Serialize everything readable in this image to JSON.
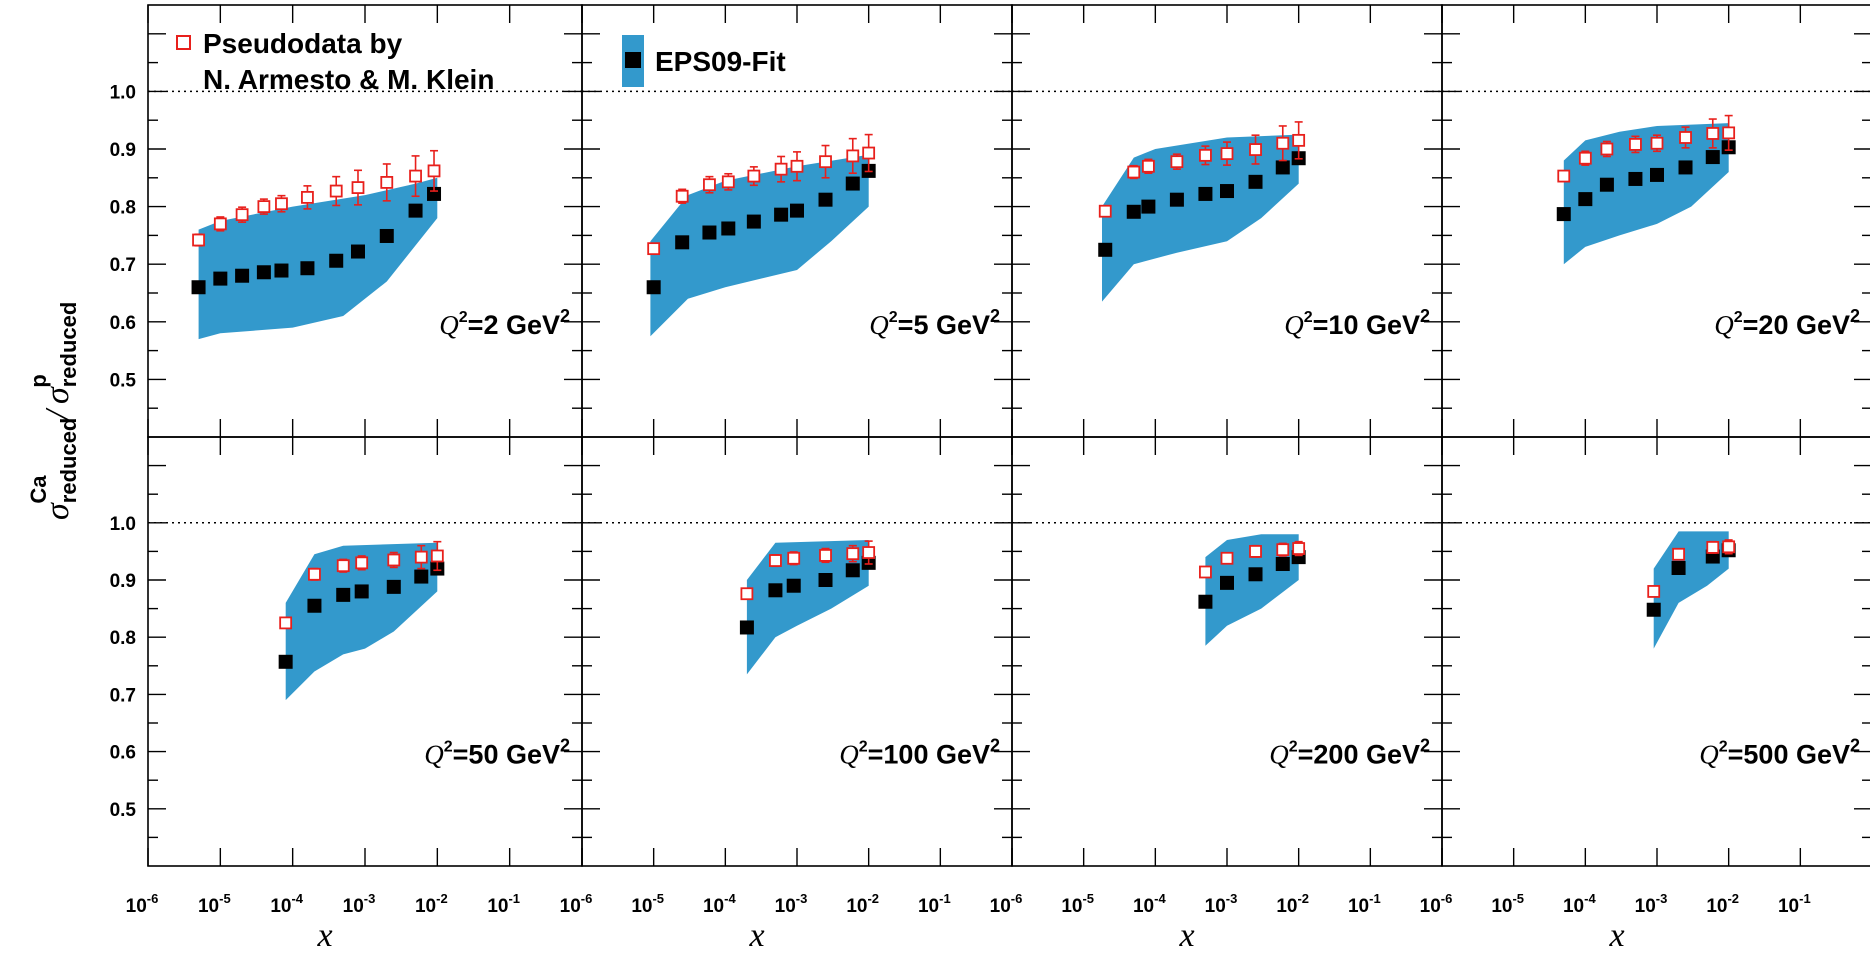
{
  "legend": {
    "pseudodata_line1": "Pseudodata by",
    "pseudodata_line2": "N. Armesto & M. Klein",
    "fit_label": "EPS09-Fit"
  },
  "y_axis": {
    "symbol": "σ",
    "num_sub": "reduced",
    "num_sup": "Ca",
    "divider": "/",
    "den_sub": "reduced",
    "den_sup": "p"
  },
  "x_axis_title": "x",
  "colors": {
    "band": "#3399cc",
    "pseudodata": "#e8201c",
    "fit": "#000000",
    "frame": "#000000"
  },
  "chart_data": {
    "type": "scatter",
    "x_scale": "log",
    "xlim": [
      1e-06,
      1
    ],
    "ylim": [
      0.4,
      1.15
    ],
    "x_ticks": [
      {
        "base": "10",
        "exp": "-6"
      },
      {
        "base": "10",
        "exp": "-5"
      },
      {
        "base": "10",
        "exp": "-4"
      },
      {
        "base": "10",
        "exp": "-3"
      },
      {
        "base": "10",
        "exp": "-2"
      },
      {
        "base": "10",
        "exp": "-1"
      }
    ],
    "y_ticks": [
      "0.5",
      "0.6",
      "0.7",
      "0.8",
      "0.9",
      "1.0"
    ],
    "reference_line": 1.0,
    "series_names": [
      "Pseudodata by N. Armesto & M. Klein",
      "EPS09-Fit"
    ],
    "panels": [
      {
        "q2_var": "Q",
        "q2_sup": "2",
        "q2_text": "=2 GeV",
        "q2_unit_sup": "2",
        "pseudodata": [
          {
            "x": 5e-06,
            "y": 0.742,
            "err": 0.01
          },
          {
            "x": 1e-05,
            "y": 0.77,
            "err": 0.012
          },
          {
            "x": 2e-05,
            "y": 0.786,
            "err": 0.013
          },
          {
            "x": 4e-05,
            "y": 0.8,
            "err": 0.013
          },
          {
            "x": 7e-05,
            "y": 0.805,
            "err": 0.014
          },
          {
            "x": 0.00016,
            "y": 0.816,
            "err": 0.02
          },
          {
            "x": 0.0004,
            "y": 0.827,
            "err": 0.025
          },
          {
            "x": 0.0008,
            "y": 0.833,
            "err": 0.03
          },
          {
            "x": 0.002,
            "y": 0.842,
            "err": 0.032
          },
          {
            "x": 0.005,
            "y": 0.853,
            "err": 0.035
          },
          {
            "x": 0.009,
            "y": 0.862,
            "err": 0.035
          }
        ],
        "fit": [
          {
            "x": 5e-06,
            "y": 0.66
          },
          {
            "x": 1e-05,
            "y": 0.675
          },
          {
            "x": 2e-05,
            "y": 0.68
          },
          {
            "x": 4e-05,
            "y": 0.686
          },
          {
            "x": 7e-05,
            "y": 0.689
          },
          {
            "x": 0.00016,
            "y": 0.693
          },
          {
            "x": 0.0004,
            "y": 0.706
          },
          {
            "x": 0.0008,
            "y": 0.722
          },
          {
            "x": 0.002,
            "y": 0.749
          },
          {
            "x": 0.005,
            "y": 0.793
          },
          {
            "x": 0.009,
            "y": 0.822
          }
        ],
        "band_upper": [
          [
            5e-06,
            0.76
          ],
          [
            1e-05,
            0.775
          ],
          [
            0.0001,
            0.8
          ],
          [
            0.001,
            0.82
          ],
          [
            0.005,
            0.84
          ],
          [
            0.01,
            0.85
          ]
        ],
        "band_lower": [
          [
            5e-06,
            0.57
          ],
          [
            1e-05,
            0.58
          ],
          [
            0.0001,
            0.59
          ],
          [
            0.0005,
            0.61
          ],
          [
            0.002,
            0.67
          ],
          [
            0.01,
            0.78
          ]
        ]
      },
      {
        "q2_var": "Q",
        "q2_sup": "2",
        "q2_text": "=5 GeV",
        "q2_unit_sup": "2",
        "pseudodata": [
          {
            "x": 1e-05,
            "y": 0.727,
            "err": 0.009
          },
          {
            "x": 2.5e-05,
            "y": 0.818,
            "err": 0.012
          },
          {
            "x": 6e-05,
            "y": 0.838,
            "err": 0.014
          },
          {
            "x": 0.00011,
            "y": 0.843,
            "err": 0.014
          },
          {
            "x": 0.00025,
            "y": 0.853,
            "err": 0.016
          },
          {
            "x": 0.0006,
            "y": 0.865,
            "err": 0.022
          },
          {
            "x": 0.001,
            "y": 0.87,
            "err": 0.025
          },
          {
            "x": 0.0025,
            "y": 0.878,
            "err": 0.028
          },
          {
            "x": 0.006,
            "y": 0.888,
            "err": 0.03
          },
          {
            "x": 0.01,
            "y": 0.893,
            "err": 0.032
          }
        ],
        "fit": [
          {
            "x": 1e-05,
            "y": 0.66
          },
          {
            "x": 2.5e-05,
            "y": 0.738
          },
          {
            "x": 6e-05,
            "y": 0.755
          },
          {
            "x": 0.00011,
            "y": 0.762
          },
          {
            "x": 0.00025,
            "y": 0.774
          },
          {
            "x": 0.0006,
            "y": 0.786
          },
          {
            "x": 0.001,
            "y": 0.793
          },
          {
            "x": 0.0025,
            "y": 0.812
          },
          {
            "x": 0.006,
            "y": 0.84
          },
          {
            "x": 0.01,
            "y": 0.862
          }
        ],
        "band_upper": [
          [
            9e-06,
            0.74
          ],
          [
            3e-05,
            0.82
          ],
          [
            0.0001,
            0.845
          ],
          [
            0.001,
            0.87
          ],
          [
            0.01,
            0.89
          ]
        ],
        "band_lower": [
          [
            9e-06,
            0.575
          ],
          [
            3e-05,
            0.64
          ],
          [
            0.0001,
            0.66
          ],
          [
            0.001,
            0.69
          ],
          [
            0.003,
            0.74
          ],
          [
            0.01,
            0.8
          ]
        ]
      },
      {
        "q2_var": "Q",
        "q2_sup": "2",
        "q2_text": "=10 GeV",
        "q2_unit_sup": "2",
        "pseudodata": [
          {
            "x": 2e-05,
            "y": 0.792,
            "err": 0.009
          },
          {
            "x": 5e-05,
            "y": 0.86,
            "err": 0.011
          },
          {
            "x": 8e-05,
            "y": 0.87,
            "err": 0.012
          },
          {
            "x": 0.0002,
            "y": 0.878,
            "err": 0.013
          },
          {
            "x": 0.0005,
            "y": 0.889,
            "err": 0.016
          },
          {
            "x": 0.001,
            "y": 0.892,
            "err": 0.02
          },
          {
            "x": 0.0025,
            "y": 0.899,
            "err": 0.025
          },
          {
            "x": 0.006,
            "y": 0.91,
            "err": 0.03
          },
          {
            "x": 0.01,
            "y": 0.915,
            "err": 0.032
          }
        ],
        "fit": [
          {
            "x": 2e-05,
            "y": 0.725
          },
          {
            "x": 5e-05,
            "y": 0.791
          },
          {
            "x": 8e-05,
            "y": 0.8
          },
          {
            "x": 0.0002,
            "y": 0.812
          },
          {
            "x": 0.0005,
            "y": 0.822
          },
          {
            "x": 0.001,
            "y": 0.827
          },
          {
            "x": 0.0025,
            "y": 0.843
          },
          {
            "x": 0.006,
            "y": 0.868
          },
          {
            "x": 0.01,
            "y": 0.884
          }
        ],
        "band_upper": [
          [
            1.8e-05,
            0.8
          ],
          [
            5e-05,
            0.885
          ],
          [
            0.0001,
            0.9
          ],
          [
            0.001,
            0.92
          ],
          [
            0.01,
            0.925
          ]
        ],
        "band_lower": [
          [
            1.8e-05,
            0.635
          ],
          [
            5e-05,
            0.7
          ],
          [
            0.0002,
            0.72
          ],
          [
            0.001,
            0.74
          ],
          [
            0.003,
            0.78
          ],
          [
            0.01,
            0.84
          ]
        ]
      },
      {
        "q2_var": "Q",
        "q2_sup": "2",
        "q2_text": "=20 GeV",
        "q2_unit_sup": "2",
        "pseudodata": [
          {
            "x": 5e-05,
            "y": 0.853,
            "err": 0.009
          },
          {
            "x": 0.0001,
            "y": 0.884,
            "err": 0.012
          },
          {
            "x": 0.0002,
            "y": 0.9,
            "err": 0.013
          },
          {
            "x": 0.0005,
            "y": 0.908,
            "err": 0.014
          },
          {
            "x": 0.001,
            "y": 0.91,
            "err": 0.014
          },
          {
            "x": 0.0025,
            "y": 0.92,
            "err": 0.018
          },
          {
            "x": 0.006,
            "y": 0.927,
            "err": 0.025
          },
          {
            "x": 0.01,
            "y": 0.928,
            "err": 0.03
          }
        ],
        "fit": [
          {
            "x": 5e-05,
            "y": 0.787
          },
          {
            "x": 0.0001,
            "y": 0.813
          },
          {
            "x": 0.0002,
            "y": 0.838
          },
          {
            "x": 0.0005,
            "y": 0.848
          },
          {
            "x": 0.001,
            "y": 0.855
          },
          {
            "x": 0.0025,
            "y": 0.868
          },
          {
            "x": 0.006,
            "y": 0.886
          },
          {
            "x": 0.01,
            "y": 0.903
          }
        ],
        "band_upper": [
          [
            5e-05,
            0.88
          ],
          [
            0.0001,
            0.915
          ],
          [
            0.0003,
            0.93
          ],
          [
            0.001,
            0.94
          ],
          [
            0.01,
            0.945
          ]
        ],
        "band_lower": [
          [
            5e-05,
            0.7
          ],
          [
            0.0001,
            0.73
          ],
          [
            0.0003,
            0.75
          ],
          [
            0.001,
            0.77
          ],
          [
            0.003,
            0.8
          ],
          [
            0.01,
            0.86
          ]
        ]
      },
      {
        "q2_var": "Q",
        "q2_sup": "2",
        "q2_text": "=50 GeV",
        "q2_unit_sup": "2",
        "pseudodata": [
          {
            "x": 8e-05,
            "y": 0.825,
            "err": 0.008
          },
          {
            "x": 0.0002,
            "y": 0.91,
            "err": 0.01
          },
          {
            "x": 0.0005,
            "y": 0.925,
            "err": 0.011
          },
          {
            "x": 0.0009,
            "y": 0.93,
            "err": 0.012
          },
          {
            "x": 0.0025,
            "y": 0.935,
            "err": 0.013
          },
          {
            "x": 0.006,
            "y": 0.94,
            "err": 0.02
          },
          {
            "x": 0.01,
            "y": 0.942,
            "err": 0.025
          }
        ],
        "fit": [
          {
            "x": 8e-05,
            "y": 0.757
          },
          {
            "x": 0.0002,
            "y": 0.855
          },
          {
            "x": 0.0005,
            "y": 0.874
          },
          {
            "x": 0.0009,
            "y": 0.88
          },
          {
            "x": 0.0025,
            "y": 0.888
          },
          {
            "x": 0.006,
            "y": 0.906
          },
          {
            "x": 0.01,
            "y": 0.92
          }
        ],
        "band_upper": [
          [
            8e-05,
            0.86
          ],
          [
            0.0002,
            0.945
          ],
          [
            0.0005,
            0.96
          ],
          [
            0.01,
            0.965
          ]
        ],
        "band_lower": [
          [
            8e-05,
            0.69
          ],
          [
            0.0002,
            0.74
          ],
          [
            0.0005,
            0.77
          ],
          [
            0.001,
            0.78
          ],
          [
            0.0025,
            0.81
          ],
          [
            0.01,
            0.88
          ]
        ]
      },
      {
        "q2_var": "Q",
        "q2_sup": "2",
        "q2_text": "=100 GeV",
        "q2_unit_sup": "2",
        "pseudodata": [
          {
            "x": 0.0002,
            "y": 0.876,
            "err": 0.008
          },
          {
            "x": 0.0005,
            "y": 0.934,
            "err": 0.01
          },
          {
            "x": 0.0009,
            "y": 0.938,
            "err": 0.011
          },
          {
            "x": 0.0025,
            "y": 0.943,
            "err": 0.012
          },
          {
            "x": 0.006,
            "y": 0.946,
            "err": 0.014
          },
          {
            "x": 0.01,
            "y": 0.948,
            "err": 0.02
          }
        ],
        "fit": [
          {
            "x": 0.0002,
            "y": 0.817
          },
          {
            "x": 0.0005,
            "y": 0.882
          },
          {
            "x": 0.0009,
            "y": 0.89
          },
          {
            "x": 0.0025,
            "y": 0.9
          },
          {
            "x": 0.006,
            "y": 0.917
          },
          {
            "x": 0.01,
            "y": 0.93
          }
        ],
        "band_upper": [
          [
            0.0002,
            0.9
          ],
          [
            0.0005,
            0.965
          ],
          [
            0.01,
            0.97
          ]
        ],
        "band_lower": [
          [
            0.0002,
            0.735
          ],
          [
            0.0005,
            0.8
          ],
          [
            0.001,
            0.82
          ],
          [
            0.003,
            0.85
          ],
          [
            0.01,
            0.89
          ]
        ]
      },
      {
        "q2_var": "Q",
        "q2_sup": "2",
        "q2_text": "=200 GeV",
        "q2_unit_sup": "2",
        "pseudodata": [
          {
            "x": 0.0005,
            "y": 0.914,
            "err": 0.008
          },
          {
            "x": 0.001,
            "y": 0.938,
            "err": 0.009
          },
          {
            "x": 0.0025,
            "y": 0.95,
            "err": 0.01
          },
          {
            "x": 0.006,
            "y": 0.953,
            "err": 0.011
          },
          {
            "x": 0.01,
            "y": 0.955,
            "err": 0.012
          }
        ],
        "fit": [
          {
            "x": 0.0005,
            "y": 0.862
          },
          {
            "x": 0.001,
            "y": 0.895
          },
          {
            "x": 0.0025,
            "y": 0.91
          },
          {
            "x": 0.006,
            "y": 0.928
          },
          {
            "x": 0.01,
            "y": 0.94
          }
        ],
        "band_upper": [
          [
            0.0005,
            0.94
          ],
          [
            0.001,
            0.97
          ],
          [
            0.003,
            0.98
          ],
          [
            0.01,
            0.98
          ]
        ],
        "band_lower": [
          [
            0.0005,
            0.785
          ],
          [
            0.001,
            0.82
          ],
          [
            0.003,
            0.85
          ],
          [
            0.01,
            0.9
          ]
        ]
      },
      {
        "q2_var": "Q",
        "q2_sup": "2",
        "q2_text": "=500 GeV",
        "q2_unit_sup": "2",
        "pseudodata": [
          {
            "x": 0.0009,
            "y": 0.88,
            "err": 0.008
          },
          {
            "x": 0.002,
            "y": 0.945,
            "err": 0.009
          },
          {
            "x": 0.006,
            "y": 0.957,
            "err": 0.01
          },
          {
            "x": 0.01,
            "y": 0.958,
            "err": 0.012
          }
        ],
        "fit": [
          {
            "x": 0.0009,
            "y": 0.848
          },
          {
            "x": 0.002,
            "y": 0.921
          },
          {
            "x": 0.006,
            "y": 0.941
          },
          {
            "x": 0.01,
            "y": 0.952
          }
        ],
        "band_upper": [
          [
            0.0009,
            0.92
          ],
          [
            0.002,
            0.985
          ],
          [
            0.01,
            0.985
          ]
        ],
        "band_lower": [
          [
            0.0009,
            0.78
          ],
          [
            0.002,
            0.86
          ],
          [
            0.005,
            0.89
          ],
          [
            0.01,
            0.92
          ]
        ]
      }
    ]
  }
}
